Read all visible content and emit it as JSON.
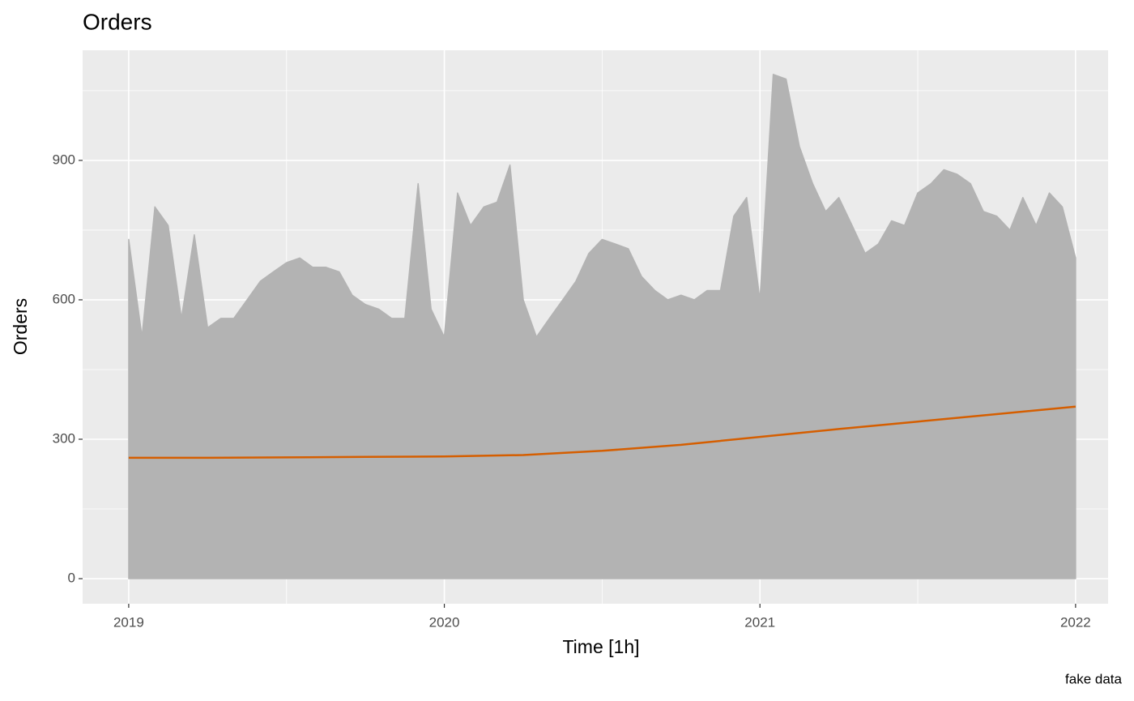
{
  "chart_data": {
    "type": "line",
    "title": "Orders",
    "xlabel": "Time [1h]",
    "ylabel": "Orders",
    "caption": "fake data",
    "xlim": [
      2018.854,
      2022.103
    ],
    "ylim": [
      -54,
      1137
    ],
    "xticks": [
      2019,
      2020,
      2021,
      2022
    ],
    "yticks": [
      0,
      300,
      600,
      900
    ],
    "x_minor_ticks": [
      2019.5,
      2020.5,
      2021.5
    ],
    "y_minor_ticks": [
      150,
      450,
      750,
      1050
    ],
    "grid": true,
    "series": [
      {
        "color": "#b3b3b3",
        "fill_to_zero": true,
        "x": [
          2019,
          2019.042,
          2019.083,
          2019.125,
          2019.167,
          2019.208,
          2019.25,
          2019.292,
          2019.333,
          2019.375,
          2019.417,
          2019.458,
          2019.5,
          2019.542,
          2019.583,
          2019.625,
          2019.667,
          2019.708,
          2019.75,
          2019.792,
          2019.833,
          2019.875,
          2019.917,
          2019.958,
          2020,
          2020.042,
          2020.083,
          2020.125,
          2020.167,
          2020.208,
          2020.25,
          2020.292,
          2020.333,
          2020.375,
          2020.417,
          2020.458,
          2020.5,
          2020.542,
          2020.583,
          2020.625,
          2020.667,
          2020.708,
          2020.75,
          2020.792,
          2020.833,
          2020.875,
          2020.917,
          2020.958,
          2021,
          2021.042,
          2021.083,
          2021.125,
          2021.167,
          2021.208,
          2021.25,
          2021.292,
          2021.333,
          2021.375,
          2021.417,
          2021.458,
          2021.5,
          2021.542,
          2021.583,
          2021.625,
          2021.667,
          2021.708,
          2021.75,
          2021.792,
          2021.833,
          2021.875,
          2021.917,
          2021.958,
          2022
        ],
        "values": [
          730,
          520,
          800,
          760,
          560,
          740,
          540,
          560,
          560,
          600,
          640,
          660,
          680,
          690,
          670,
          670,
          660,
          610,
          590,
          580,
          560,
          560,
          850,
          580,
          520,
          830,
          760,
          800,
          810,
          890,
          600,
          520,
          560,
          600,
          640,
          700,
          730,
          720,
          710,
          650,
          620,
          600,
          610,
          600,
          620,
          620,
          780,
          820,
          600,
          1085,
          1075,
          930,
          850,
          790,
          820,
          760,
          700,
          720,
          770,
          760,
          830,
          850,
          880,
          870,
          850,
          790,
          780,
          750,
          820,
          760,
          830,
          800,
          690
        ]
      },
      {
        "color": "#d55e00",
        "x": [
          2019,
          2019.25,
          2019.5,
          2019.75,
          2020,
          2020.25,
          2020.5,
          2020.75,
          2021,
          2021.25,
          2021.5,
          2021.75,
          2022
        ],
        "values": [
          260,
          260,
          261,
          262,
          263,
          266,
          275,
          288,
          305,
          322,
          338,
          354,
          370
        ]
      }
    ]
  }
}
